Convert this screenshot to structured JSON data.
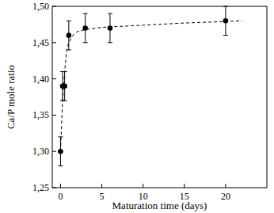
{
  "chart_data": {
    "type": "scatter",
    "x_label": "Maturation time (days)",
    "y_label": "Ca/P mole ratio",
    "xlim": [
      -1,
      25
    ],
    "ylim": [
      1.25,
      1.5
    ],
    "xticks": [
      0,
      5,
      10,
      15,
      20
    ],
    "yticks": [
      {
        "value": 1.25,
        "label": "1,25"
      },
      {
        "value": 1.3,
        "label": "1,30"
      },
      {
        "value": 1.35,
        "label": "1,35"
      },
      {
        "value": 1.4,
        "label": "1,40"
      },
      {
        "value": 1.45,
        "label": "1,45"
      },
      {
        "value": 1.5,
        "label": "1,50"
      }
    ],
    "grid": false,
    "series": [
      {
        "type": "scatter",
        "marker": "circle",
        "color": "#000000",
        "x": [
          0,
          0.25,
          0.5,
          1,
          3,
          6,
          20
        ],
        "values": [
          1.3,
          1.39,
          1.39,
          1.46,
          1.47,
          1.47,
          1.48
        ],
        "errors": [
          0.02,
          0.02,
          0.02,
          0.02,
          0.02,
          0.02,
          0.02
        ]
      },
      {
        "type": "line",
        "line_style": "dashed",
        "color": "#000000",
        "x": [
          0,
          0.25,
          0.5,
          0.75,
          1,
          1.5,
          2,
          3,
          5,
          10,
          15,
          20,
          22
        ],
        "values": [
          1.3,
          1.37,
          1.41,
          1.44,
          1.45,
          1.46,
          1.465,
          1.468,
          1.471,
          1.474,
          1.477,
          1.479,
          1.48
        ]
      }
    ]
  }
}
